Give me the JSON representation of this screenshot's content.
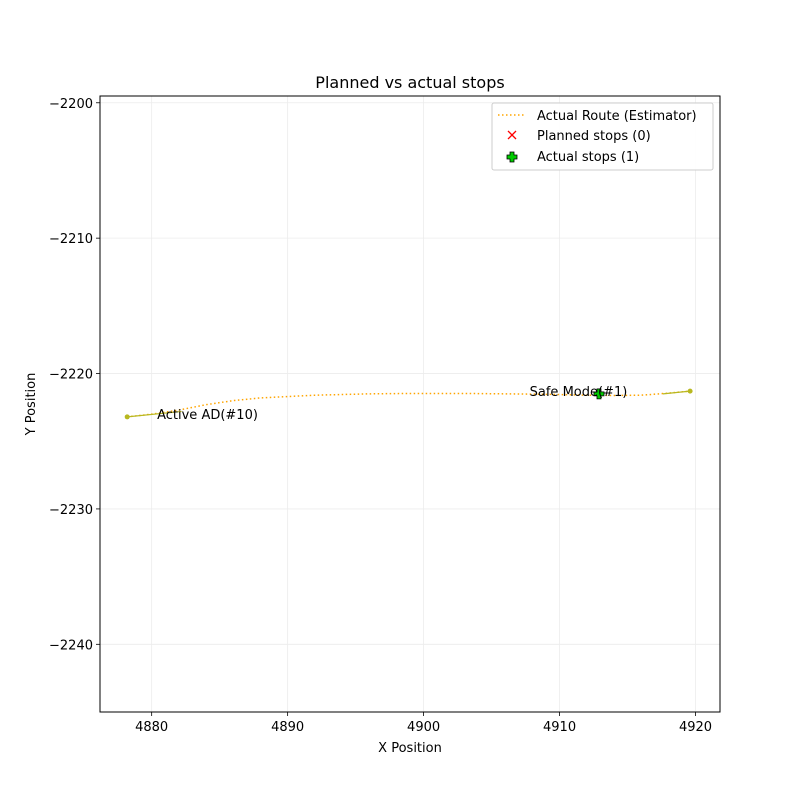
{
  "chart_data": {
    "type": "line",
    "title": "Planned vs actual stops",
    "xlabel": "X Position",
    "ylabel": "Y Position",
    "xlim": [
      4876.2,
      4921.8
    ],
    "ylim": [
      -2245,
      -2199.5
    ],
    "xticks": [
      4880,
      4890,
      4900,
      4910,
      4920
    ],
    "xtick_labels": [
      "4880",
      "4890",
      "4900",
      "4910",
      "4920"
    ],
    "yticks": [
      -2200,
      -2210,
      -2220,
      -2230,
      -2240
    ],
    "ytick_labels": [
      "−2200",
      "−2210",
      "−2220",
      "−2230",
      "−2240"
    ],
    "grid": true,
    "legend_position": "top-right",
    "series": [
      {
        "name": "Actual Route (Estimator)",
        "style": "dotted",
        "color": "#ffa500",
        "x": [
          4878.2,
          4880,
          4882,
          4884,
          4886,
          4888,
          4890,
          4892,
          4894,
          4896,
          4898,
          4900,
          4902,
          4904,
          4906,
          4908,
          4910,
          4912,
          4914,
          4916,
          4918,
          4919.6
        ],
        "y": [
          -2223.2,
          -2223.0,
          -2222.7,
          -2222.3,
          -2222.0,
          -2221.8,
          -2221.7,
          -2221.6,
          -2221.55,
          -2221.5,
          -2221.48,
          -2221.47,
          -2221.47,
          -2221.48,
          -2221.5,
          -2221.52,
          -2221.55,
          -2221.6,
          -2221.62,
          -2221.6,
          -2221.45,
          -2221.3
        ]
      },
      {
        "name": "Planned stops (0)",
        "style": "marker-x",
        "color": "#ff0000",
        "x": [],
        "y": []
      },
      {
        "name": "Actual stops (1)",
        "style": "marker-plus",
        "color": "#00cc00",
        "x": [
          4912.9
        ],
        "y": [
          -2221.5
        ]
      }
    ],
    "segments": [
      {
        "x": [
          4878.2,
          4882.2
        ],
        "y": [
          -2223.2,
          -2222.8
        ],
        "color": "#b8b820"
      },
      {
        "x": [
          4917.6,
          4919.6
        ],
        "y": [
          -2221.5,
          -2221.3
        ],
        "color": "#b8b820"
      }
    ],
    "annotations": [
      {
        "text": "Active AD(#10)",
        "x": 4880.4,
        "y": -2223.0
      },
      {
        "text": "Safe Mode(#1)",
        "x": 4907.8,
        "y": -2221.3
      }
    ]
  }
}
